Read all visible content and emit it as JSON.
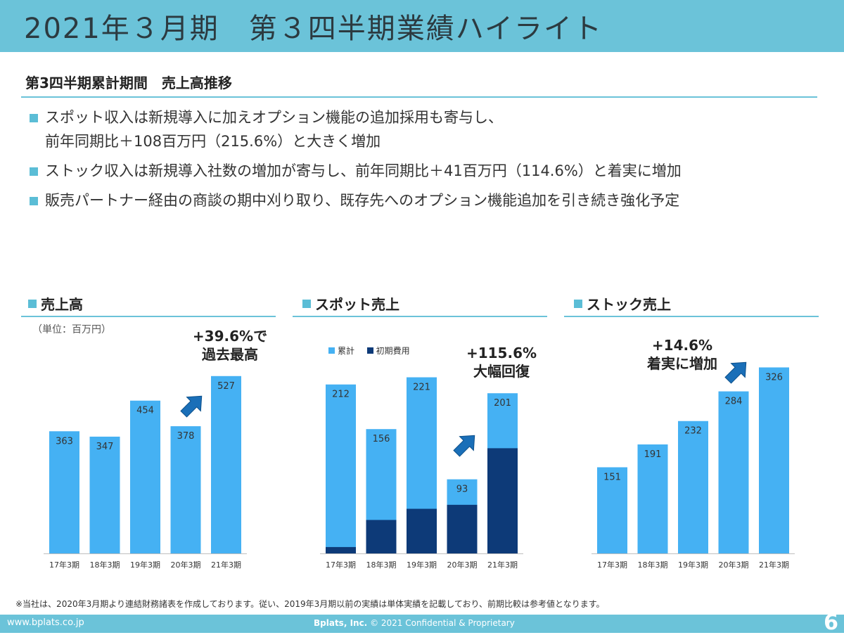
{
  "header": {
    "title": "2021年３月期　第３四半期業績ハイライト"
  },
  "section": {
    "title": "第3四半期累計期間　売上高推移"
  },
  "bullets": [
    {
      "line1": "スポット収入は新規導入に加えオプション機能の追加採用も寄与し、",
      "line2": "前年同期比＋108百万円（215.6%）と大きく増加"
    },
    {
      "line1": "ストック収入は新規導入社数の増加が寄与し、前年同期比＋41百万円（114.6%）と着実に増加"
    },
    {
      "line1": "販売パートナー経由の商談の期中刈り取り、既存先へのオプション機能追加を引き続き強化予定"
    }
  ],
  "chart_titles": {
    "sales": "売上高",
    "spot": "スポット売上",
    "stock": "ストック売上"
  },
  "unit_label": "（単位：百万円）",
  "callouts": {
    "sales": {
      "line1": "+39.6%で",
      "line2": "過去最高"
    },
    "spot": {
      "line1": "+115.6%",
      "line2": "大幅回復"
    },
    "stock": {
      "line1": "+14.6%",
      "line2": "着実に増加"
    }
  },
  "legend": {
    "cumulative": "累計",
    "initial": "初期費用"
  },
  "colors": {
    "accent": "#6bc3d9",
    "bar_light": "#45b1f3",
    "bar_dark": "#0d3a78",
    "arrow": "#1a6fb8"
  },
  "chart_data": [
    {
      "id": "sales",
      "type": "bar",
      "title": "売上高",
      "categories": [
        "17年3期",
        "18年3期",
        "19年3期",
        "20年3期",
        "21年3期"
      ],
      "values": [
        363,
        347,
        454,
        378,
        527
      ],
      "ylim": [
        0,
        560
      ]
    },
    {
      "id": "spot",
      "type": "bar",
      "title": "スポット売上",
      "categories": [
        "17年3期",
        "18年3期",
        "19年3期",
        "20年3期",
        "21年3期"
      ],
      "series": [
        {
          "name": "累計",
          "values": [
            212,
            156,
            221,
            93,
            201
          ]
        },
        {
          "name": "初期費用",
          "values": [
            8,
            42,
            56,
            61,
            132
          ]
        }
      ],
      "ylim": [
        0,
        240
      ]
    },
    {
      "id": "stock",
      "type": "bar",
      "title": "ストック売上",
      "categories": [
        "17年3期",
        "18年3期",
        "19年3期",
        "20年3期",
        "21年3期"
      ],
      "values": [
        151,
        191,
        232,
        284,
        326
      ],
      "ylim": [
        0,
        350
      ]
    }
  ],
  "footnote": "※当社は、2020年3月期より連結財務諸表を作成しております。従い、2019年3月期以前の実績は単体実績を記載しており、前期比較は参考値となります。",
  "footer": {
    "url": "www.bplats.co.jp",
    "company": "Bplats, Inc.",
    "copyright": " © 2021 Confidential & Proprietary",
    "page": "6"
  }
}
